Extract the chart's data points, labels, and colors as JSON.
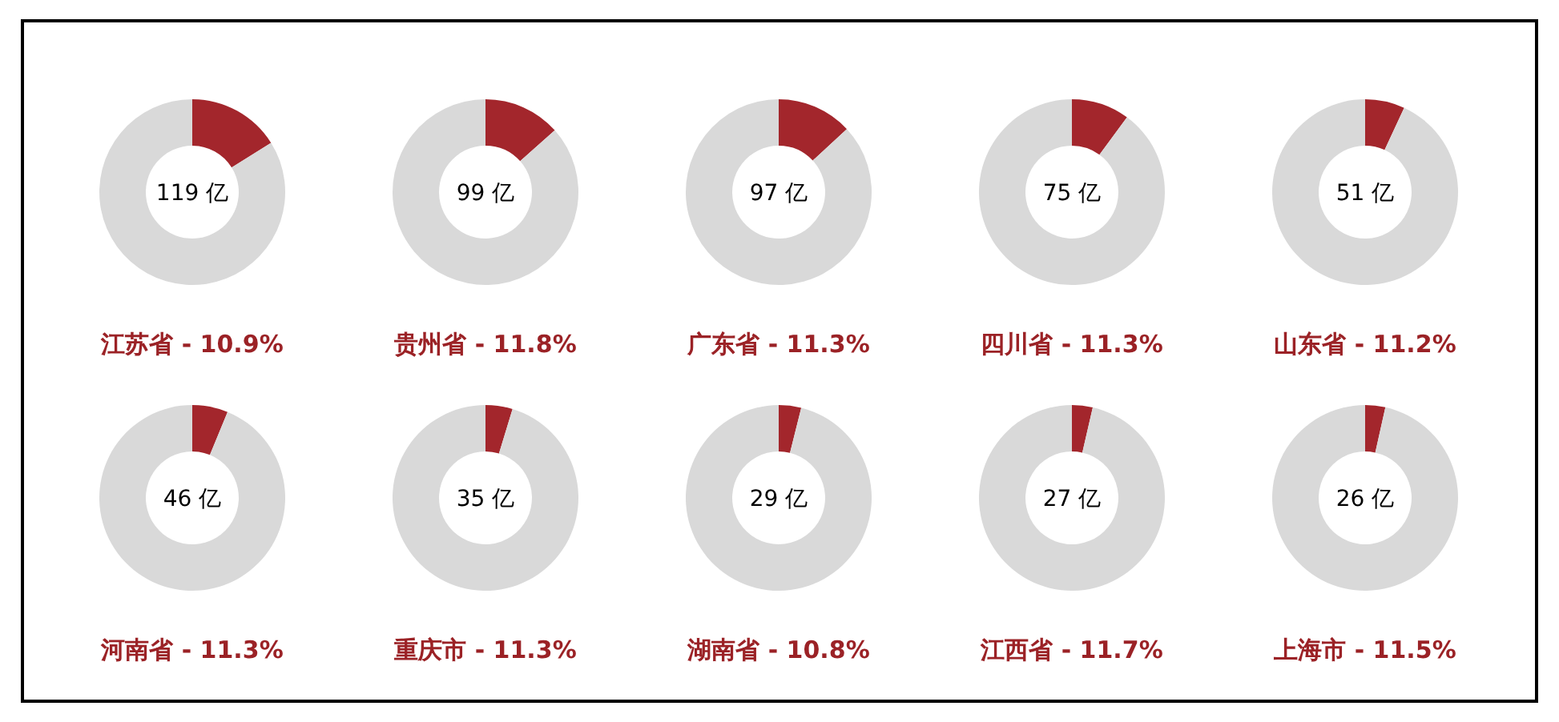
{
  "chart_data": [
    {
      "type": "donut",
      "title": "江苏省 - 10.9%",
      "categories": [
        null,
        null
      ],
      "values": [
        16.1,
        83.9
      ],
      "colors": [
        "#a3262c",
        "#d9d9d9"
      ],
      "annotations": [
        "119 亿"
      ]
    },
    {
      "type": "donut",
      "title": "贵州省 - 11.8%",
      "categories": [
        null,
        null
      ],
      "values": [
        13.4,
        86.6
      ],
      "colors": [
        "#a3262c",
        "#d9d9d9"
      ],
      "annotations": [
        "99 亿"
      ]
    },
    {
      "type": "donut",
      "title": "广东省 - 11.3%",
      "categories": [
        null,
        null
      ],
      "values": [
        13.1,
        86.9
      ],
      "colors": [
        "#a3262c",
        "#d9d9d9"
      ],
      "annotations": [
        "97 亿"
      ]
    },
    {
      "type": "donut",
      "title": "四川省 - 11.3%",
      "categories": [
        null,
        null
      ],
      "values": [
        10.1,
        89.9
      ],
      "colors": [
        "#a3262c",
        "#d9d9d9"
      ],
      "annotations": [
        "75 亿"
      ]
    },
    {
      "type": "donut",
      "title": "山东省 - 11.2%",
      "categories": [
        null,
        null
      ],
      "values": [
        6.9,
        93.1
      ],
      "colors": [
        "#a3262c",
        "#d9d9d9"
      ],
      "annotations": [
        "51 亿"
      ]
    },
    {
      "type": "donut",
      "title": "河南省 - 11.3%",
      "categories": [
        null,
        null
      ],
      "values": [
        6.2,
        93.8
      ],
      "colors": [
        "#a3262c",
        "#d9d9d9"
      ],
      "annotations": [
        "46 亿"
      ]
    },
    {
      "type": "donut",
      "title": "重庆市 - 11.3%",
      "categories": [
        null,
        null
      ],
      "values": [
        4.7,
        95.3
      ],
      "colors": [
        "#a3262c",
        "#d9d9d9"
      ],
      "annotations": [
        "35 亿"
      ]
    },
    {
      "type": "donut",
      "title": "湖南省 - 10.8%",
      "categories": [
        null,
        null
      ],
      "values": [
        3.9,
        96.1
      ],
      "colors": [
        "#a3262c",
        "#d9d9d9"
      ],
      "annotations": [
        "29 亿"
      ]
    },
    {
      "type": "donut",
      "title": "江西省 - 11.7%",
      "categories": [
        null,
        null
      ],
      "values": [
        3.6,
        96.4
      ],
      "colors": [
        "#a3262c",
        "#d9d9d9"
      ],
      "annotations": [
        "27 亿"
      ]
    },
    {
      "type": "donut",
      "title": "上海市 - 11.5%",
      "categories": [
        null,
        null
      ],
      "values": [
        3.5,
        96.5
      ],
      "colors": [
        "#a3262c",
        "#d9d9d9"
      ],
      "annotations": [
        "26 亿"
      ]
    }
  ]
}
